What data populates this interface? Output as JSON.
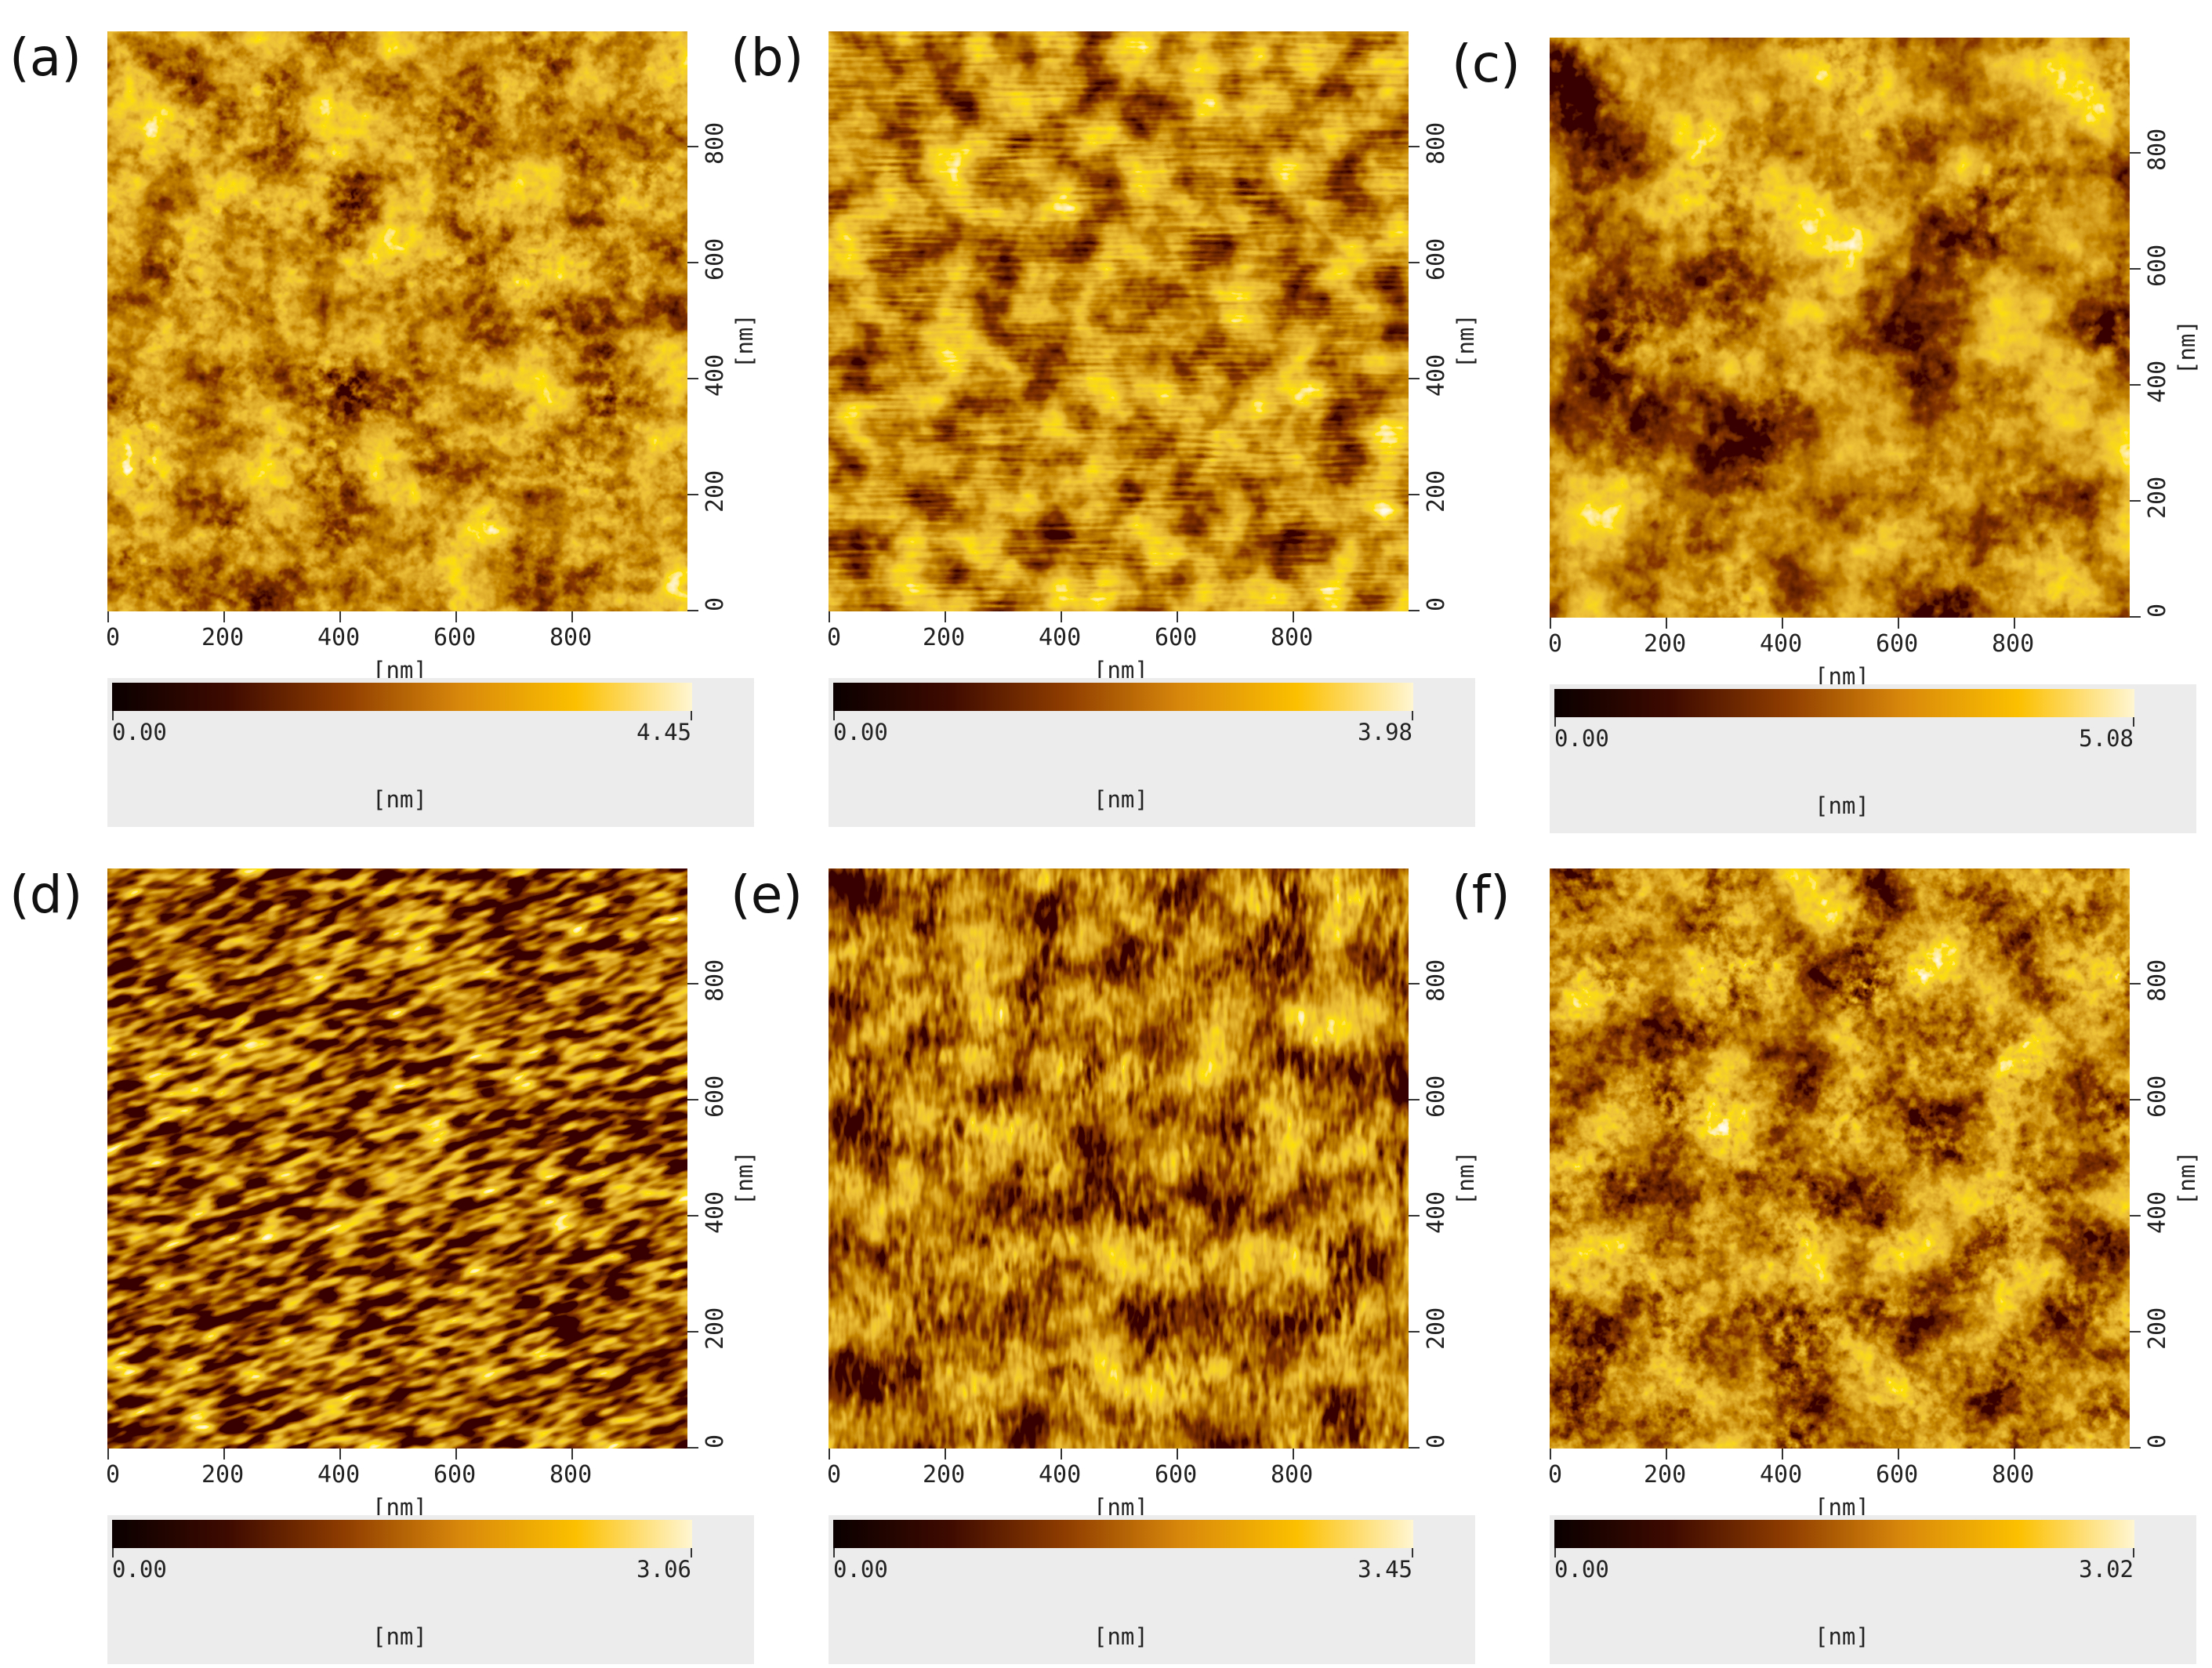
{
  "colors": {
    "colormap": [
      "#0a0000",
      "#3e0a00",
      "#8f3d00",
      "#d8880b",
      "#fcc000",
      "#fff6d2"
    ],
    "colorbar_background": "#ececec"
  },
  "axis": {
    "x_ticks": [
      "0",
      "200",
      "400",
      "600",
      "800"
    ],
    "y_ticks": [
      "0",
      "200",
      "400",
      "600",
      "800"
    ],
    "unit": "[nm]"
  },
  "panels": [
    {
      "id": "a",
      "label": "(a)",
      "colorbar_min": "0.00",
      "colorbar_max": "4.45",
      "colorbar_unit": "[nm]"
    },
    {
      "id": "b",
      "label": "(b)",
      "colorbar_min": "0.00",
      "colorbar_max": "3.98",
      "colorbar_unit": "[nm]"
    },
    {
      "id": "c",
      "label": "(c)",
      "colorbar_min": "0.00",
      "colorbar_max": "5.08",
      "colorbar_unit": "[nm]"
    },
    {
      "id": "d",
      "label": "(d)",
      "colorbar_min": "0.00",
      "colorbar_max": "3.06",
      "colorbar_unit": "[nm]"
    },
    {
      "id": "e",
      "label": "(e)",
      "colorbar_min": "0.00",
      "colorbar_max": "3.45",
      "colorbar_unit": "[nm]"
    },
    {
      "id": "f",
      "label": "(f)",
      "colorbar_min": "0.00",
      "colorbar_max": "3.02",
      "colorbar_unit": "[nm]"
    }
  ]
}
